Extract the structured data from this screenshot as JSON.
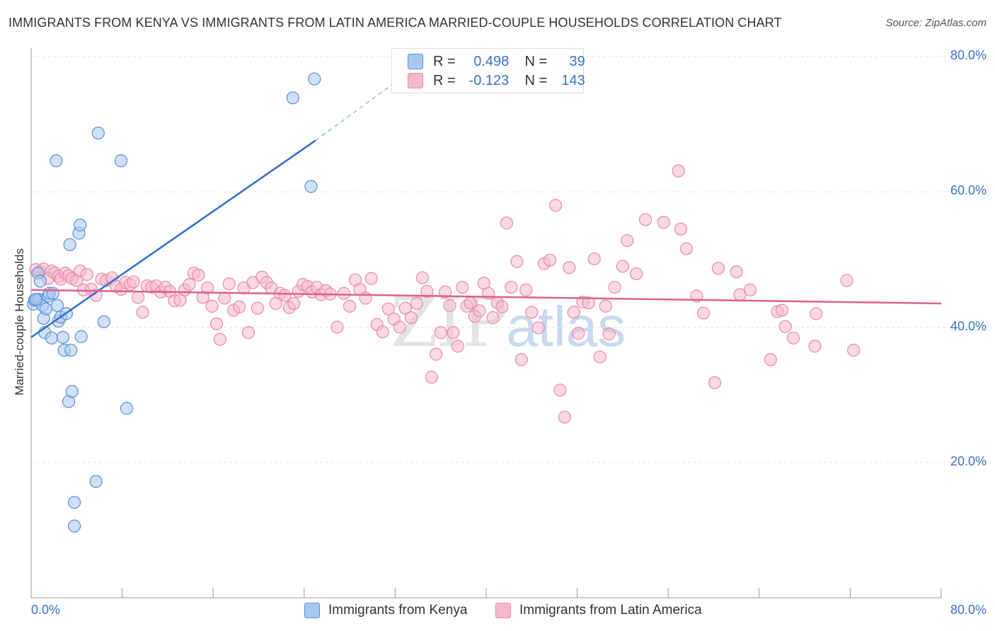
{
  "title": "IMMIGRANTS FROM KENYA VS IMMIGRANTS FROM LATIN AMERICA MARRIED-COUPLE HOUSEHOLDS CORRELATION CHART",
  "source": "Source: ZipAtlas.com",
  "watermark": {
    "zip": "ZIP",
    "atlas": "atlas"
  },
  "legend_stats": [
    {
      "r_label": "R =",
      "r_value": "0.498",
      "n_label": "N =",
      "n_value": "39"
    },
    {
      "r_label": "R =",
      "r_value": "-0.123",
      "n_label": "N =",
      "n_value": "143"
    }
  ],
  "colors": {
    "kenya_fill": "#a9c8f0",
    "kenya_stroke": "#5b8fd6",
    "kenya_line": "#2d6fcc",
    "latam_fill": "#f6b9cc",
    "latam_stroke": "#e98aa8",
    "latam_line": "#e0608a",
    "tick_label": "#3a72c4",
    "grid": "#e3e3e3"
  },
  "chart_data": {
    "type": "scatter",
    "title": "IMMIGRANTS FROM KENYA VS IMMIGRANTS FROM LATIN AMERICA MARRIED-COUPLE HOUSEHOLDS CORRELATION CHART",
    "xlabel": "",
    "ylabel": "Married-couple Households",
    "xlim": [
      0,
      80
    ],
    "ylim": [
      0,
      80
    ],
    "x_tick_labels": [
      "0.0%",
      "80.0%"
    ],
    "y_ticks": [
      20,
      40,
      60,
      80
    ],
    "y_tick_labels": [
      "20.0%",
      "40.0%",
      "60.0%",
      "80.0%"
    ],
    "grid": true,
    "legend_position": "bottom",
    "series": [
      {
        "name": "Immigrants from Kenya",
        "r": 0.498,
        "n": 39,
        "trend": {
          "x": [
            0,
            25
          ],
          "y": [
            38.5,
            67.6
          ],
          "dashed_to": [
            32,
            76.2
          ]
        },
        "points": [
          [
            0.2,
            43.4
          ],
          [
            0.3,
            44.0
          ],
          [
            0.5,
            44.1
          ],
          [
            0.6,
            48.0
          ],
          [
            0.7,
            44.1
          ],
          [
            0.8,
            46.8
          ],
          [
            1.0,
            43.2
          ],
          [
            1.1,
            41.3
          ],
          [
            1.2,
            39.2
          ],
          [
            1.3,
            42.7
          ],
          [
            1.5,
            44.6
          ],
          [
            1.6,
            45.0
          ],
          [
            1.8,
            38.4
          ],
          [
            1.9,
            45.0
          ],
          [
            2.2,
            64.6
          ],
          [
            2.3,
            43.2
          ],
          [
            2.4,
            40.9
          ],
          [
            2.6,
            41.5
          ],
          [
            2.8,
            38.5
          ],
          [
            2.9,
            36.6
          ],
          [
            3.1,
            42.0
          ],
          [
            3.3,
            29.0
          ],
          [
            3.4,
            52.2
          ],
          [
            3.5,
            36.6
          ],
          [
            3.6,
            30.5
          ],
          [
            3.8,
            14.1
          ],
          [
            3.8,
            10.6
          ],
          [
            4.2,
            53.9
          ],
          [
            4.3,
            55.1
          ],
          [
            4.4,
            38.6
          ],
          [
            5.7,
            17.2
          ],
          [
            5.9,
            68.7
          ],
          [
            6.4,
            40.8
          ],
          [
            7.9,
            64.6
          ],
          [
            8.4,
            28.0
          ],
          [
            23.0,
            73.9
          ],
          [
            24.6,
            60.8
          ],
          [
            24.9,
            76.7
          ],
          [
            0.4,
            44.1
          ]
        ]
      },
      {
        "name": "Immigrants from Latin America",
        "r": -0.123,
        "n": 143,
        "trend": {
          "x": [
            0,
            80
          ],
          "y": [
            45.5,
            43.5
          ]
        },
        "points": [
          [
            0.4,
            48.5
          ],
          [
            0.8,
            48.2
          ],
          [
            1.1,
            48.6
          ],
          [
            1.5,
            47.2
          ],
          [
            1.8,
            48.3
          ],
          [
            2.1,
            48.0
          ],
          [
            2.4,
            47.5
          ],
          [
            2.6,
            47.1
          ],
          [
            3.0,
            48.0
          ],
          [
            3.3,
            47.6
          ],
          [
            3.6,
            47.2
          ],
          [
            4.0,
            46.9
          ],
          [
            4.3,
            48.3
          ],
          [
            4.6,
            45.5
          ],
          [
            4.9,
            47.8
          ],
          [
            5.3,
            45.6
          ],
          [
            5.7,
            44.7
          ],
          [
            6.2,
            47.1
          ],
          [
            6.6,
            46.9
          ],
          [
            7.1,
            47.3
          ],
          [
            7.5,
            46.0
          ],
          [
            7.9,
            45.6
          ],
          [
            8.3,
            46.6
          ],
          [
            8.7,
            46.3
          ],
          [
            9.0,
            46.7
          ],
          [
            9.4,
            44.4
          ],
          [
            9.8,
            42.2
          ],
          [
            10.2,
            46.1
          ],
          [
            10.6,
            45.9
          ],
          [
            11.0,
            46.1
          ],
          [
            11.4,
            45.2
          ],
          [
            11.8,
            45.9
          ],
          [
            12.2,
            45.3
          ],
          [
            12.6,
            43.9
          ],
          [
            13.1,
            44.0
          ],
          [
            13.5,
            45.5
          ],
          [
            13.9,
            46.3
          ],
          [
            14.3,
            48.0
          ],
          [
            14.7,
            47.7
          ],
          [
            15.1,
            44.4
          ],
          [
            15.5,
            45.8
          ],
          [
            15.9,
            43.1
          ],
          [
            16.3,
            40.5
          ],
          [
            16.6,
            38.2
          ],
          [
            17.0,
            44.3
          ],
          [
            17.4,
            46.4
          ],
          [
            17.8,
            42.5
          ],
          [
            18.3,
            43.0
          ],
          [
            18.7,
            45.8
          ],
          [
            19.1,
            39.2
          ],
          [
            19.5,
            46.6
          ],
          [
            19.9,
            42.8
          ],
          [
            20.3,
            47.4
          ],
          [
            20.7,
            46.6
          ],
          [
            21.1,
            45.8
          ],
          [
            21.5,
            43.5
          ],
          [
            21.9,
            45.0
          ],
          [
            22.3,
            44.7
          ],
          [
            22.7,
            42.9
          ],
          [
            23.1,
            43.5
          ],
          [
            23.5,
            45.3
          ],
          [
            23.9,
            46.3
          ],
          [
            24.3,
            46.0
          ],
          [
            24.7,
            45.2
          ],
          [
            25.1,
            45.9
          ],
          [
            25.5,
            44.8
          ],
          [
            25.9,
            45.4
          ],
          [
            26.3,
            44.9
          ],
          [
            26.9,
            40.0
          ],
          [
            27.5,
            45.0
          ],
          [
            28.0,
            43.1
          ],
          [
            28.5,
            47.0
          ],
          [
            28.9,
            45.6
          ],
          [
            29.4,
            44.3
          ],
          [
            29.9,
            47.2
          ],
          [
            30.4,
            40.4
          ],
          [
            30.9,
            39.3
          ],
          [
            31.4,
            42.7
          ],
          [
            31.9,
            41.2
          ],
          [
            32.4,
            40.0
          ],
          [
            32.9,
            42.8
          ],
          [
            33.4,
            41.4
          ],
          [
            33.9,
            43.5
          ],
          [
            34.4,
            47.3
          ],
          [
            34.8,
            45.3
          ],
          [
            35.2,
            32.6
          ],
          [
            35.6,
            36.0
          ],
          [
            36.0,
            39.2
          ],
          [
            36.4,
            45.2
          ],
          [
            36.8,
            43.2
          ],
          [
            37.1,
            39.2
          ],
          [
            37.5,
            37.2
          ],
          [
            37.9,
            45.9
          ],
          [
            38.3,
            43.1
          ],
          [
            38.6,
            43.6
          ],
          [
            39.0,
            41.6
          ],
          [
            39.4,
            42.4
          ],
          [
            39.8,
            46.5
          ],
          [
            40.2,
            45.0
          ],
          [
            40.6,
            41.4
          ],
          [
            41.0,
            43.6
          ],
          [
            41.4,
            43.0
          ],
          [
            41.8,
            55.4
          ],
          [
            42.2,
            45.9
          ],
          [
            42.7,
            49.7
          ],
          [
            43.1,
            35.2
          ],
          [
            43.5,
            45.5
          ],
          [
            44.0,
            42.2
          ],
          [
            44.6,
            39.9
          ],
          [
            45.1,
            49.4
          ],
          [
            45.6,
            49.9
          ],
          [
            46.1,
            58.0
          ],
          [
            46.5,
            30.7
          ],
          [
            46.9,
            26.7
          ],
          [
            47.3,
            48.8
          ],
          [
            47.7,
            42.2
          ],
          [
            48.1,
            39.1
          ],
          [
            48.5,
            43.7
          ],
          [
            49.0,
            43.6
          ],
          [
            49.5,
            50.1
          ],
          [
            50.0,
            35.6
          ],
          [
            50.5,
            43.1
          ],
          [
            50.8,
            39.0
          ],
          [
            51.3,
            45.9
          ],
          [
            52.0,
            49.0
          ],
          [
            52.4,
            52.8
          ],
          [
            53.2,
            47.9
          ],
          [
            54.0,
            55.9
          ],
          [
            55.6,
            55.5
          ],
          [
            56.9,
            63.1
          ],
          [
            57.1,
            54.5
          ],
          [
            57.6,
            51.6
          ],
          [
            58.5,
            44.6
          ],
          [
            59.1,
            42.1
          ],
          [
            60.1,
            31.8
          ],
          [
            60.4,
            48.7
          ],
          [
            62.0,
            48.2
          ],
          [
            62.3,
            44.8
          ],
          [
            63.2,
            45.5
          ],
          [
            65.6,
            42.3
          ],
          [
            66.3,
            40.1
          ],
          [
            67.0,
            38.4
          ],
          [
            68.9,
            37.2
          ],
          [
            71.7,
            46.9
          ],
          [
            72.3,
            36.6
          ],
          [
            65.0,
            35.2
          ],
          [
            66.0,
            42.5
          ],
          [
            69.0,
            42.0
          ]
        ]
      }
    ]
  }
}
